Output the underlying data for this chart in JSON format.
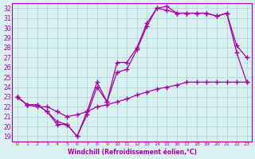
{
  "xlabel": "Windchill (Refroidissement éolien,°C)",
  "line_color": "#aa00aa",
  "bg_color": "#d8f0f0",
  "grid_color": "#b0d8d8",
  "xlim": [
    0,
    23
  ],
  "ylim": [
    19,
    32
  ],
  "xticks": [
    0,
    1,
    2,
    3,
    4,
    5,
    6,
    7,
    8,
    9,
    10,
    11,
    12,
    13,
    14,
    15,
    16,
    17,
    18,
    19,
    20,
    21,
    22,
    23
  ],
  "yticks": [
    19,
    20,
    21,
    22,
    23,
    24,
    25,
    26,
    27,
    28,
    29,
    30,
    31,
    32
  ],
  "line1_x": [
    0,
    1,
    2,
    3,
    4,
    5,
    6,
    7,
    8,
    9,
    10,
    11,
    12,
    13,
    14,
    15,
    16,
    17,
    18,
    19,
    20,
    21,
    22,
    23
  ],
  "line1_y": [
    23.0,
    22.2,
    22.2,
    21.5,
    20.2,
    20.2,
    19.0,
    21.5,
    24.5,
    22.5,
    26.5,
    26.5,
    28.0,
    30.5,
    32.0,
    32.2,
    31.5,
    31.5,
    31.5,
    31.5,
    31.2,
    31.5,
    28.2,
    27.0
  ],
  "line2_x": [
    0,
    1,
    2,
    3,
    4,
    5,
    6,
    7,
    8,
    9,
    10,
    11,
    12,
    13,
    14,
    15,
    16,
    17,
    18,
    19,
    20,
    21,
    22,
    23
  ],
  "line2_y": [
    23.0,
    22.2,
    22.2,
    21.5,
    20.5,
    20.2,
    19.0,
    21.2,
    24.0,
    22.5,
    25.5,
    25.8,
    27.8,
    30.2,
    32.0,
    31.8,
    31.5,
    31.5,
    31.5,
    31.5,
    31.2,
    31.5,
    27.5,
    24.5
  ],
  "line3_x": [
    0,
    1,
    2,
    3,
    4,
    5,
    6,
    7,
    8,
    9,
    10,
    11,
    12,
    13,
    14,
    15,
    16,
    17,
    18,
    19,
    20,
    21,
    22,
    23
  ],
  "line3_y": [
    23.0,
    22.2,
    22.0,
    22.0,
    21.5,
    21.0,
    21.2,
    21.5,
    22.0,
    22.2,
    22.5,
    22.8,
    23.2,
    23.5,
    23.8,
    24.0,
    24.2,
    24.5,
    24.5,
    24.5,
    24.5,
    24.5,
    24.5,
    24.5
  ]
}
